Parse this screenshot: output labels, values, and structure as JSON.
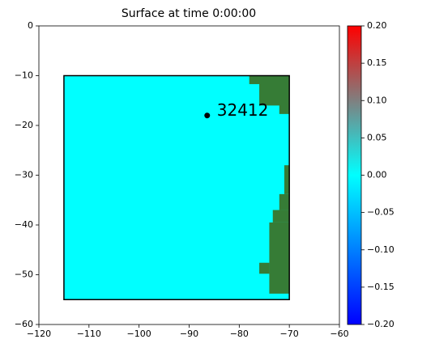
{
  "chart_data": {
    "type": "image",
    "title": "Surface at time 0:00:00",
    "xlim": [
      -120,
      -60
    ],
    "xticks": [
      {
        "value": -120,
        "label": "−120"
      },
      {
        "value": -110,
        "label": "−110"
      },
      {
        "value": -100,
        "label": "−100"
      },
      {
        "value": -90,
        "label": "−90"
      },
      {
        "value": -80,
        "label": "−80"
      },
      {
        "value": -70,
        "label": "−70"
      },
      {
        "value": -60,
        "label": "−60"
      }
    ],
    "ylim": [
      -60,
      0
    ],
    "yticks": [
      {
        "value": -60,
        "label": "−60"
      },
      {
        "value": -50,
        "label": "−50"
      },
      {
        "value": -40,
        "label": "−40"
      },
      {
        "value": -30,
        "label": "−30"
      },
      {
        "value": -20,
        "label": "−20"
      },
      {
        "value": -10,
        "label": "−10"
      },
      0
    ],
    "water_color": "#00ffff",
    "land_color": "#367c36",
    "region": {
      "x": [
        -115,
        -70
      ],
      "y": [
        -55,
        -10
      ]
    },
    "land": [
      {
        "x": [
          -78,
          -70
        ],
        "y": [
          -11.7,
          -10
        ]
      },
      {
        "x": [
          -76,
          -70
        ],
        "y": [
          -16,
          -10
        ]
      },
      {
        "x": [
          -72,
          -70
        ],
        "y": [
          -17.7,
          -10
        ]
      },
      {
        "x": [
          -71,
          -70
        ],
        "y": [
          -33.8,
          -28
        ]
      },
      {
        "x": [
          -72,
          -70
        ],
        "y": [
          -37,
          -33.8
        ]
      },
      {
        "x": [
          -73.3,
          -70
        ],
        "y": [
          -39.5,
          -37
        ]
      },
      {
        "x": [
          -74,
          -70
        ],
        "y": [
          -53.8,
          -39.5
        ]
      },
      {
        "x": [
          -76,
          -74
        ],
        "y": [
          -49.8,
          -47.6
        ]
      }
    ],
    "gauges": [
      {
        "label": "32412",
        "x": -86.4,
        "y": -18
      }
    ],
    "colorbar": {
      "lim": [
        -0.2,
        0.2
      ],
      "colors": [
        "#0000ff",
        "#00ffff",
        "#ff0000"
      ],
      "ticks": [
        {
          "value": -0.2,
          "label": "−0.20"
        },
        {
          "value": -0.15,
          "label": "−0.15"
        },
        {
          "value": -0.1,
          "label": "−0.10"
        },
        {
          "value": -0.05,
          "label": "−0.05"
        },
        {
          "value": 0,
          "label": "0.00"
        },
        {
          "value": 0.05,
          "label": "0.05"
        },
        {
          "value": 0.1,
          "label": "0.10"
        },
        {
          "value": 0.15,
          "label": "0.15"
        },
        {
          "value": 0.2,
          "label": "0.20"
        }
      ]
    }
  }
}
